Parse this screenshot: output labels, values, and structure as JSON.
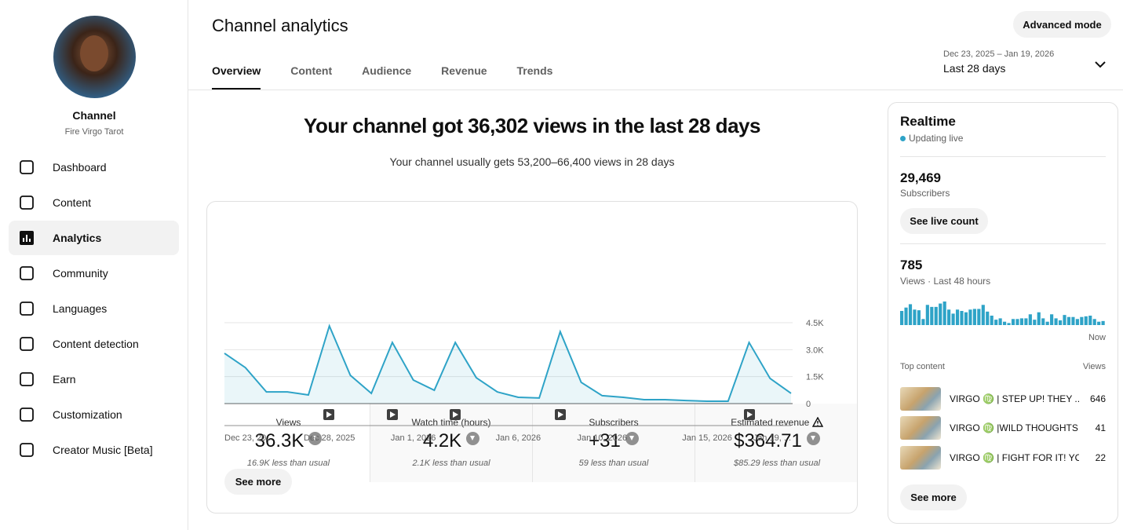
{
  "sidebar": {
    "channel_label": "Channel",
    "channel_name": "Fire Virgo Tarot",
    "nav": [
      "Dashboard",
      "Content",
      "Analytics",
      "Community",
      "Languages",
      "Content detection",
      "Earn",
      "Customization",
      "Creator Music [Beta]"
    ],
    "active_nav": "Analytics"
  },
  "header": {
    "title": "Channel analytics",
    "tabs": [
      "Overview",
      "Content",
      "Audience",
      "Revenue",
      "Trends"
    ],
    "active_tab": "Overview",
    "mode_button": "Advanced mode",
    "date_range": "Dec 23, 2025 – Jan 19, 2026",
    "period": "Last 28 days"
  },
  "summary": {
    "headline": "Your channel got 36,302 views in the last 28 days",
    "typical": "Your channel usually gets 53,200–66,400 views in 28 days"
  },
  "metrics": [
    {
      "label": "Views",
      "value": "36.3K",
      "delta": "16.9K less than usual"
    },
    {
      "label": "Watch time (hours)",
      "value": "4.2K",
      "delta": "2.1K less than usual"
    },
    {
      "label": "Subscribers",
      "value": "+31",
      "delta": "59 less than usual"
    },
    {
      "label": "Estimated revenue",
      "value": "$364.71",
      "delta": "$85.29 less than usual"
    }
  ],
  "chart_data": {
    "type": "line",
    "color": "#2ea3c7",
    "categories": [
      "Dec 23, 20...",
      null,
      null,
      null,
      null,
      "Dec 28, 2025",
      null,
      null,
      null,
      "Jan 1, 2026",
      null,
      null,
      null,
      null,
      "Jan 6, 2026",
      null,
      null,
      null,
      "Jan 10, 2026",
      null,
      null,
      null,
      null,
      "Jan 15, 2026",
      null,
      null,
      null,
      "Jan 19, ..."
    ],
    "values": [
      2800,
      2000,
      650,
      650,
      480,
      4320,
      1570,
      570,
      3400,
      1310,
      740,
      3400,
      1440,
      650,
      350,
      310,
      4000,
      1180,
      440,
      350,
      220,
      220,
      170,
      130,
      130,
      3400,
      1400,
      570
    ],
    "ylim": [
      0,
      4500
    ],
    "yticks": [
      0,
      {
        "value": 1500,
        "label": "1.5K"
      },
      {
        "value": 3000,
        "label": "3.0K"
      },
      {
        "value": 4500,
        "label": "4.5K"
      }
    ],
    "grid": true
  },
  "see_more": "See more",
  "realtime": {
    "title": "Realtime",
    "status": "Updating live",
    "subscribers": "29,469",
    "subscribers_label": "Subscribers",
    "live_button": "See live count",
    "views": 785,
    "views_label": "Views · Last 48 hours",
    "bars": {
      "type": "bar",
      "color": "#2ea3c7",
      "values": [
        21,
        26,
        31,
        23,
        22,
        9,
        30,
        27,
        27,
        32,
        35,
        23,
        17,
        23,
        21,
        19,
        23,
        24,
        24,
        30,
        20,
        14,
        8,
        10,
        5,
        3,
        9,
        9,
        10,
        10,
        16,
        8,
        19,
        10,
        5,
        16,
        10,
        7,
        15,
        12,
        12,
        9,
        12,
        13,
        14,
        9,
        5,
        6
      ]
    },
    "now_label": "Now",
    "top_content": {
      "title": "Top content",
      "column": "Views",
      "items": [
        {
          "title": "VIRGO ♍️ | STEP UP! THEY ...",
          "views": 646
        },
        {
          "title": "VIRGO ♍️ |WILD THOUGHTS!...",
          "views": 41
        },
        {
          "title": "VIRGO ♍️ | FIGHT FOR IT! YO...",
          "views": 22
        }
      ]
    },
    "see_more": "See more"
  }
}
